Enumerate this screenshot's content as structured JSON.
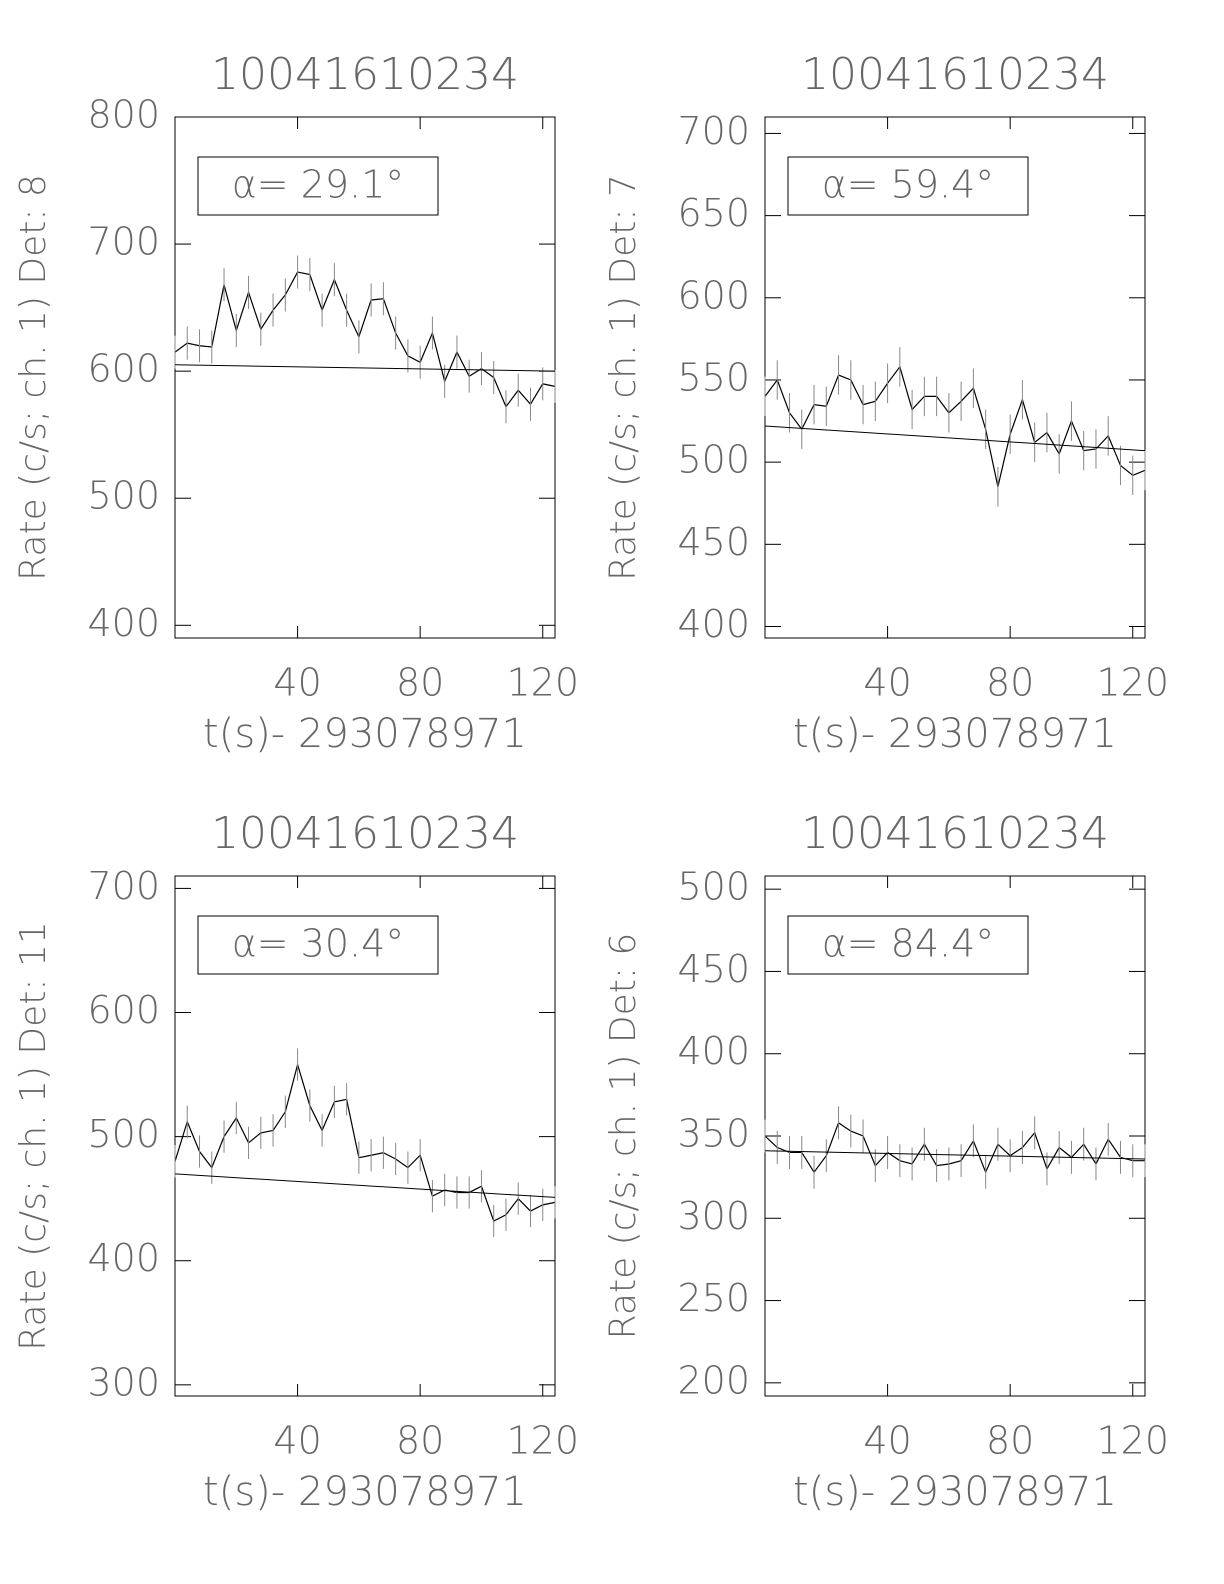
{
  "chart_data": [
    {
      "type": "line",
      "title": "10041610234",
      "xlabel": "t(s)- 293078971",
      "ylabel": "Rate (c/s; ch. 1) Det: 8",
      "annotation": "α= 29.1°",
      "xlim": [
        0,
        124
      ],
      "xticks": [
        40,
        80,
        120
      ],
      "ylim": [
        390,
        800
      ],
      "yticks": [
        400,
        500,
        600,
        700,
        800
      ],
      "x": [
        0,
        4,
        8,
        12,
        16,
        20,
        24,
        28,
        32,
        36,
        40,
        44,
        48,
        52,
        56,
        60,
        64,
        68,
        72,
        76,
        80,
        84,
        88,
        92,
        96,
        100,
        104,
        108,
        112,
        116,
        120,
        124
      ],
      "series": [
        {
          "color": "#000000",
          "error": 13,
          "values": [
            615,
            622,
            620,
            619,
            668,
            632,
            662,
            633,
            648,
            660,
            678,
            676,
            648,
            672,
            648,
            627,
            656,
            657,
            630,
            612,
            607,
            630,
            592,
            615,
            596,
            602,
            595,
            572,
            585,
            574,
            590,
            588
          ]
        },
        {
          "color": "#000000",
          "x": [
            0,
            124
          ],
          "values": [
            605,
            600
          ]
        }
      ]
    },
    {
      "type": "line",
      "title": "10041610234",
      "xlabel": "t(s)- 293078971",
      "ylabel": "Rate (c/s; ch. 1) Det: 7",
      "annotation": "α= 59.4°",
      "xlim": [
        0,
        124
      ],
      "xticks": [
        40,
        80,
        120
      ],
      "ylim": [
        393,
        710
      ],
      "yticks": [
        400,
        450,
        500,
        550,
        600,
        650,
        700
      ],
      "x": [
        0,
        4,
        8,
        12,
        16,
        20,
        24,
        28,
        32,
        36,
        40,
        44,
        48,
        52,
        56,
        60,
        64,
        68,
        72,
        76,
        80,
        84,
        88,
        92,
        96,
        100,
        104,
        108,
        112,
        116,
        120,
        124
      ],
      "series": [
        {
          "color": "#000000",
          "error": 12,
          "values": [
            540,
            550,
            530,
            520,
            535,
            534,
            553,
            550,
            535,
            537,
            548,
            558,
            532,
            540,
            540,
            530,
            537,
            545,
            520,
            485,
            517,
            538,
            512,
            518,
            505,
            525,
            507,
            508,
            516,
            498,
            492,
            495
          ]
        },
        {
          "color": "#000000",
          "x": [
            0,
            124
          ],
          "values": [
            522,
            507
          ]
        }
      ]
    },
    {
      "type": "line",
      "title": "10041610234",
      "xlabel": "t(s)- 293078971",
      "ylabel": "Rate (c/s; ch. 1) Det: 11",
      "annotation": "α= 30.4°",
      "xlim": [
        0,
        124
      ],
      "xticks": [
        40,
        80,
        120
      ],
      "ylim": [
        291,
        710
      ],
      "yticks": [
        300,
        400,
        500,
        600,
        700
      ],
      "x": [
        0,
        4,
        8,
        12,
        16,
        20,
        24,
        28,
        32,
        36,
        40,
        44,
        48,
        52,
        56,
        60,
        64,
        68,
        72,
        76,
        80,
        84,
        88,
        92,
        96,
        100,
        104,
        108,
        112,
        116,
        120,
        124
      ],
      "series": [
        {
          "color": "#000000",
          "error": 13,
          "values": [
            480,
            512,
            488,
            475,
            500,
            515,
            495,
            503,
            505,
            520,
            558,
            525,
            505,
            528,
            530,
            483,
            485,
            487,
            482,
            475,
            485,
            452,
            457,
            455,
            455,
            460,
            432,
            437,
            450,
            440,
            445,
            447
          ]
        },
        {
          "color": "#000000",
          "x": [
            0,
            124
          ],
          "values": [
            470,
            451
          ]
        }
      ]
    },
    {
      "type": "line",
      "title": "10041610234",
      "xlabel": "t(s)- 293078971",
      "ylabel": "Rate (c/s; ch. 1) Det: 6",
      "annotation": "α= 84.4°",
      "xlim": [
        0,
        124
      ],
      "xticks": [
        40,
        80,
        120
      ],
      "ylim": [
        192,
        508
      ],
      "yticks": [
        200,
        250,
        300,
        350,
        400,
        450,
        500
      ],
      "x": [
        0,
        4,
        8,
        12,
        16,
        20,
        24,
        28,
        32,
        36,
        40,
        44,
        48,
        52,
        56,
        60,
        64,
        68,
        72,
        76,
        80,
        84,
        88,
        92,
        96,
        100,
        104,
        108,
        112,
        116,
        120,
        124
      ],
      "series": [
        {
          "color": "#000000",
          "error": 10,
          "values": [
            350,
            343,
            340,
            340,
            328,
            338,
            358,
            353,
            350,
            332,
            340,
            335,
            333,
            345,
            332,
            333,
            335,
            347,
            328,
            345,
            338,
            343,
            352,
            330,
            343,
            337,
            345,
            333,
            348,
            337,
            335,
            335
          ]
        },
        {
          "color": "#000000",
          "x": [
            0,
            124
          ],
          "values": [
            341,
            336
          ]
        }
      ]
    }
  ]
}
